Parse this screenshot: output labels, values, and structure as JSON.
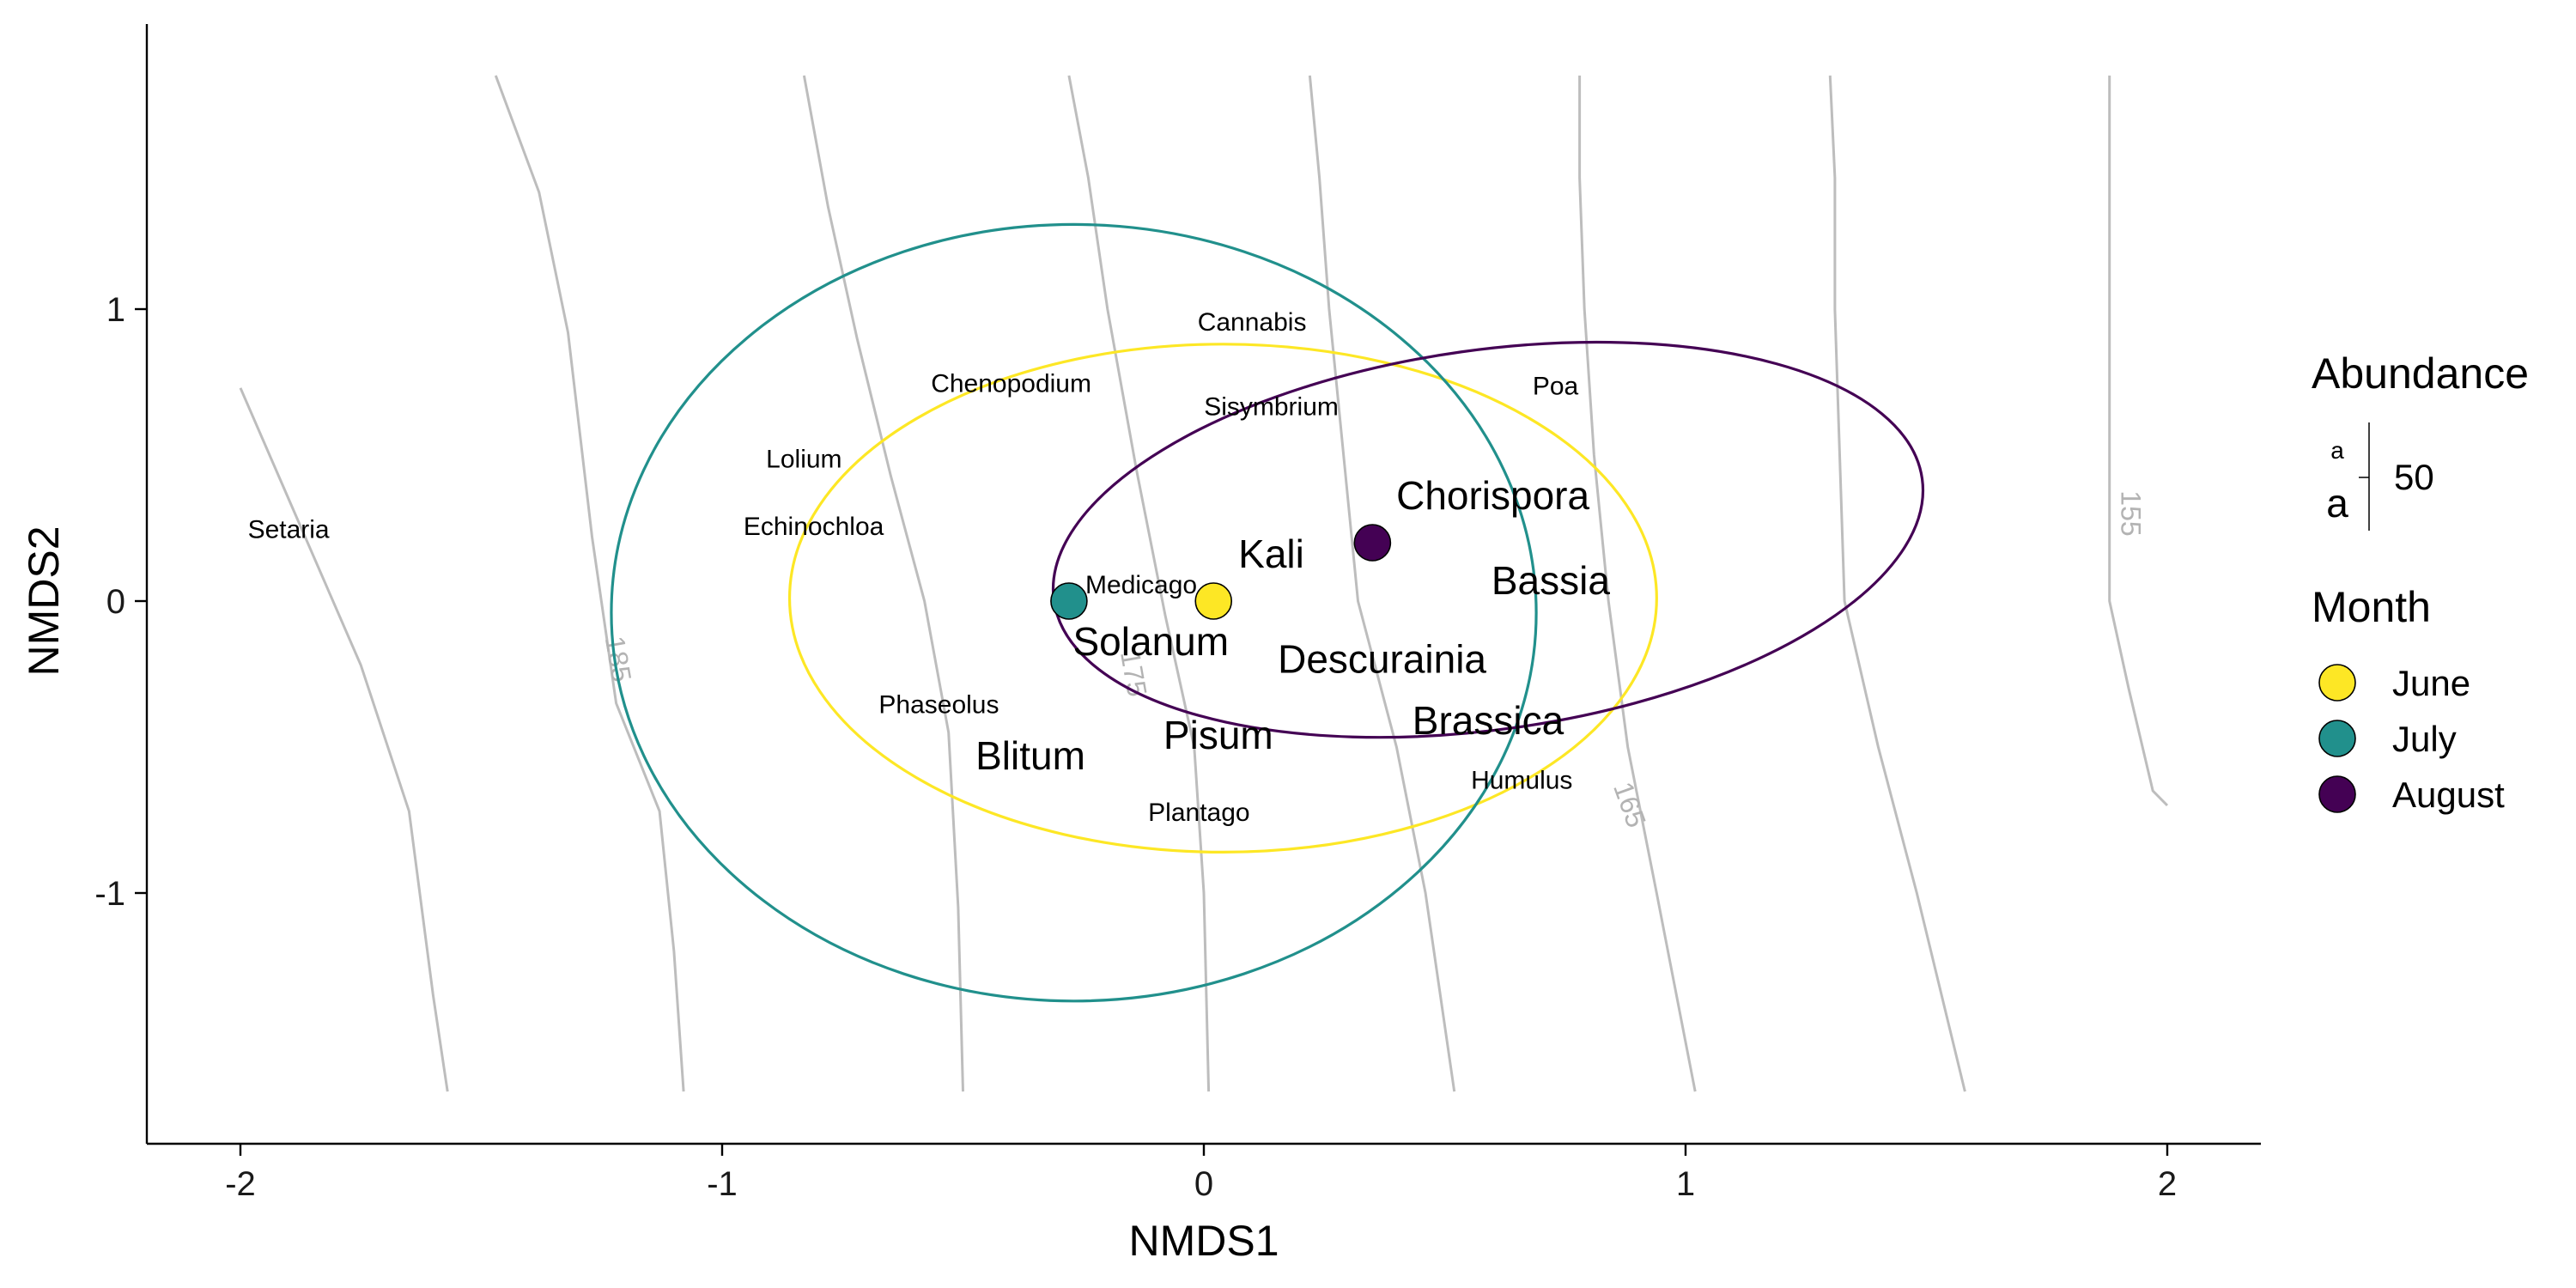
{
  "chart_data": {
    "type": "scatter",
    "title": "",
    "xlabel": "NMDS1",
    "ylabel": "NMDS2",
    "xlim": [
      -2.2,
      2.2
    ],
    "ylim": [
      -1.87,
      1.97
    ],
    "x_ticks": [
      {
        "value": -2,
        "label": "-2"
      },
      {
        "value": -1,
        "label": "-1"
      },
      {
        "value": 0,
        "label": "0"
      },
      {
        "value": 1,
        "label": "1"
      },
      {
        "value": 2,
        "label": "2"
      }
    ],
    "y_ticks": [
      {
        "value": -1,
        "label": "-1"
      },
      {
        "value": 0,
        "label": "0"
      },
      {
        "value": 1,
        "label": "1"
      }
    ],
    "grid": false,
    "series": [
      {
        "name": "June",
        "color": "#FDE725",
        "centroid": [
          0.02,
          0.0
        ],
        "ellipse": {
          "cx": 0.04,
          "cy": 0.01,
          "rx": 0.9,
          "ry": 0.87
        }
      },
      {
        "name": "July",
        "color": "#21908C",
        "centroid": [
          -0.28,
          0.0
        ],
        "ellipse": {
          "cx": -0.27,
          "cy": -0.04,
          "rx": 0.96,
          "ry": 1.33
        }
      },
      {
        "name": "August",
        "color": "#440154",
        "centroid": [
          0.35,
          0.2
        ],
        "ellipse": {
          "cx": 0.59,
          "cy": 0.21,
          "rx": 0.91,
          "ry": 0.65,
          "rotation_deg": -8
        }
      }
    ],
    "species": [
      {
        "name": "Setaria",
        "x": -1.9,
        "y": 0.24,
        "abundance": 10
      },
      {
        "name": "Lolium",
        "x": -0.83,
        "y": 0.48,
        "abundance": 10
      },
      {
        "name": "Echinochloa",
        "x": -0.81,
        "y": 0.25,
        "abundance": 10
      },
      {
        "name": "Chenopodium",
        "x": -0.4,
        "y": 0.74,
        "abundance": 10
      },
      {
        "name": "Cannabis",
        "x": 0.1,
        "y": 0.95,
        "abundance": 10
      },
      {
        "name": "Sisymbrium",
        "x": 0.14,
        "y": 0.66,
        "abundance": 10
      },
      {
        "name": "Poa",
        "x": 0.73,
        "y": 0.73,
        "abundance": 10
      },
      {
        "name": "Medicago",
        "x": -0.13,
        "y": 0.05,
        "abundance": 10
      },
      {
        "name": "Phaseolus",
        "x": -0.55,
        "y": -0.36,
        "abundance": 10
      },
      {
        "name": "Plantago",
        "x": -0.01,
        "y": -0.73,
        "abundance": 10
      },
      {
        "name": "Humulus",
        "x": 0.66,
        "y": -0.62,
        "abundance": 10
      },
      {
        "name": "Chorispora",
        "x": 0.6,
        "y": 0.35,
        "abundance": 50
      },
      {
        "name": "Kali",
        "x": 0.14,
        "y": 0.15,
        "abundance": 50
      },
      {
        "name": "Bassia",
        "x": 0.72,
        "y": 0.06,
        "abundance": 50
      },
      {
        "name": "Solanum",
        "x": -0.11,
        "y": -0.15,
        "abundance": 50
      },
      {
        "name": "Descurainia",
        "x": 0.37,
        "y": -0.21,
        "abundance": 50
      },
      {
        "name": "Brassica",
        "x": 0.59,
        "y": -0.42,
        "abundance": 50
      },
      {
        "name": "Pisum",
        "x": 0.03,
        "y": -0.47,
        "abundance": 50
      },
      {
        "name": "Blitum",
        "x": -0.36,
        "y": -0.54,
        "abundance": 50
      }
    ],
    "contours": [
      {
        "points": [
          [
            -2.0,
            0.73
          ],
          [
            -1.9,
            0.35
          ],
          [
            -1.75,
            -0.22
          ],
          [
            -1.65,
            -0.72
          ],
          [
            -1.6,
            -1.35
          ],
          [
            -1.57,
            -1.68
          ]
        ]
      },
      {
        "points": [
          [
            -1.47,
            1.8
          ],
          [
            -1.38,
            1.4
          ],
          [
            -1.32,
            0.92
          ],
          [
            -1.27,
            0.22
          ],
          [
            -1.22,
            -0.35
          ],
          [
            -1.13,
            -0.72
          ],
          [
            -1.1,
            -1.2
          ],
          [
            -1.08,
            -1.68
          ]
        ]
      },
      {
        "points": [
          [
            -0.83,
            1.8
          ],
          [
            -0.78,
            1.35
          ],
          [
            -0.72,
            0.9
          ],
          [
            -0.65,
            0.43
          ],
          [
            -0.58,
            0.0
          ],
          [
            -0.53,
            -0.45
          ],
          [
            -0.51,
            -1.05
          ],
          [
            -0.5,
            -1.68
          ]
        ]
      },
      {
        "points": [
          [
            -0.28,
            1.8
          ],
          [
            -0.24,
            1.45
          ],
          [
            -0.2,
            1.0
          ],
          [
            -0.14,
            0.45
          ],
          [
            -0.08,
            -0.05
          ],
          [
            -0.02,
            -0.5
          ],
          [
            0.0,
            -1.0
          ],
          [
            0.01,
            -1.68
          ]
        ]
      },
      {
        "points": [
          [
            0.22,
            1.8
          ],
          [
            0.24,
            1.45
          ],
          [
            0.26,
            1.0
          ],
          [
            0.29,
            0.5
          ],
          [
            0.32,
            0.0
          ],
          [
            0.4,
            -0.5
          ],
          [
            0.46,
            -1.0
          ],
          [
            0.52,
            -1.68
          ]
        ]
      },
      {
        "points": [
          [
            0.78,
            1.8
          ],
          [
            0.78,
            1.45
          ],
          [
            0.79,
            1.0
          ],
          [
            0.81,
            0.5
          ],
          [
            0.84,
            0.0
          ],
          [
            0.88,
            -0.5
          ],
          [
            0.94,
            -1.0
          ],
          [
            1.02,
            -1.68
          ]
        ]
      },
      {
        "points": [
          [
            1.3,
            1.8
          ],
          [
            1.31,
            1.45
          ],
          [
            1.31,
            1.0
          ],
          [
            1.32,
            0.5
          ],
          [
            1.33,
            0.0
          ],
          [
            1.4,
            -0.5
          ],
          [
            1.48,
            -1.0
          ],
          [
            1.58,
            -1.68
          ]
        ]
      },
      {
        "points": [
          [
            1.88,
            1.8
          ],
          [
            1.88,
            1.45
          ],
          [
            1.88,
            1.0
          ],
          [
            1.88,
            0.5
          ],
          [
            1.88,
            0.0
          ],
          [
            1.92,
            -0.3
          ],
          [
            1.97,
            -0.65
          ],
          [
            2.0,
            -0.7
          ]
        ]
      }
    ],
    "contour_labels": [
      {
        "text": "185",
        "x": -1.22,
        "y": -0.2,
        "rotation": 80
      },
      {
        "text": "175",
        "x": -0.15,
        "y": -0.25,
        "rotation": 80
      },
      {
        "text": "165",
        "x": 0.88,
        "y": -0.7,
        "rotation": 70
      },
      {
        "text": "155",
        "x": 1.92,
        "y": 0.3,
        "rotation": 90
      }
    ],
    "legend": {
      "position": "right",
      "size_title": "Abundance",
      "size_value": "50",
      "size_glyph_small": "a",
      "size_glyph_large": "a",
      "color_title": "Month"
    }
  }
}
